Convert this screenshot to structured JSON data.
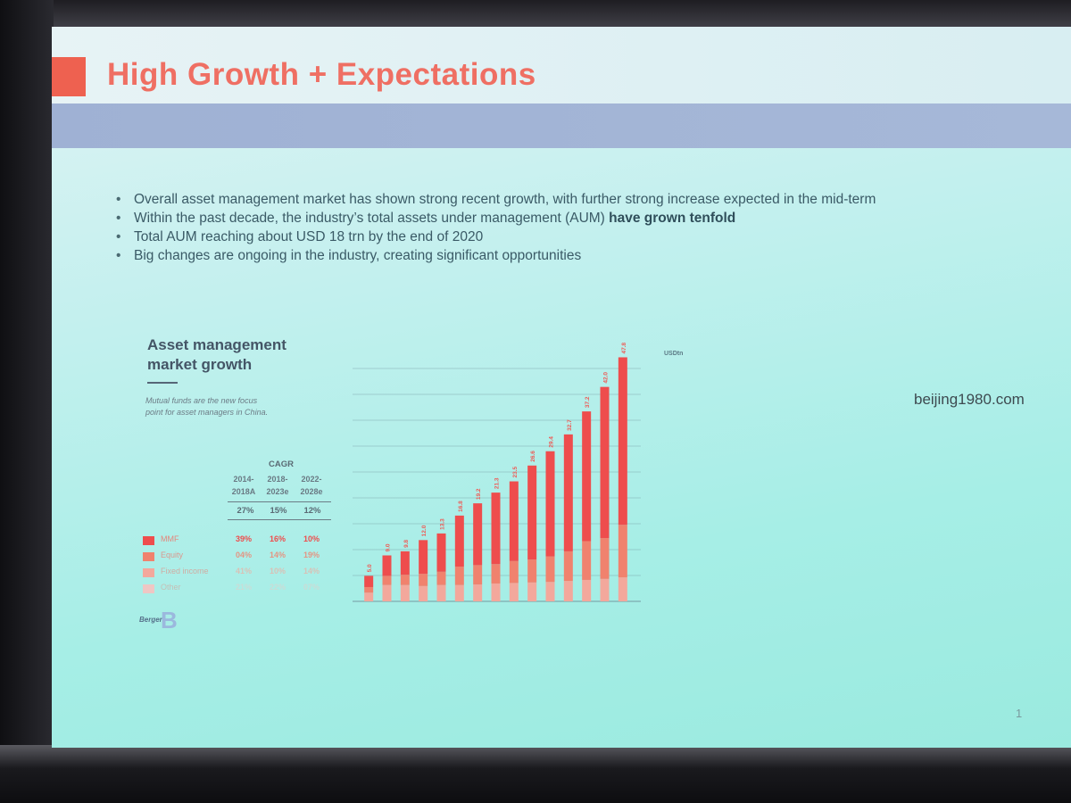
{
  "slide": {
    "title": "High Growth + Expectations",
    "bullets": [
      {
        "text": "Overall asset management market has shown strong recent growth, with further strong increase expected in the mid-term",
        "bold": ""
      },
      {
        "text": "Within the past decade, the industry’s total assets under management (AUM) ",
        "bold": "have grown tenfold"
      },
      {
        "text": "Total AUM reaching about USD 18 trn by the end of 2020",
        "bold": ""
      },
      {
        "text": "Big changes are ongoing in the industry, creating significant opportunities",
        "bold": ""
      }
    ],
    "page_number": "1",
    "watermark": "beijing1980.com"
  },
  "chart_panel": {
    "title_line1": "Asset management",
    "title_line2": "market growth",
    "note": "Mutual funds are the new focus point for asset managers in China.",
    "cagr": {
      "header": "CAGR",
      "periods": [
        {
          "line1": "2014-",
          "line2": "2018A"
        },
        {
          "line1": "2018-",
          "line2": "2023e"
        },
        {
          "line1": "2022-",
          "line2": "2028e"
        }
      ],
      "totals": [
        "27%",
        "15%",
        "12%"
      ]
    },
    "legend": [
      {
        "label": "MMF",
        "values": [
          "39%",
          "16%",
          "10%"
        ],
        "color": "#ee4d4d"
      },
      {
        "label": "Equity",
        "values": [
          "04%",
          "14%",
          "19%"
        ],
        "color": "#f0826e"
      },
      {
        "label": "Fixed income",
        "values": [
          "41%",
          "10%",
          "14%"
        ],
        "color": "#f3a89c"
      },
      {
        "label": "Other",
        "values": [
          "21%",
          "22%",
          "07%"
        ],
        "color": "#efc7c4"
      }
    ],
    "logo_text": "Berger"
  },
  "chart_data": {
    "type": "bar",
    "unit_label": "USDtn",
    "values": [
      5.0,
      9.0,
      9.8,
      12.0,
      13.3,
      16.8,
      19.2,
      21.3,
      23.5,
      26.6,
      29.4,
      32.7,
      37.2,
      42.0,
      47.8
    ],
    "segments": {
      "base": [
        1.7,
        3.2,
        3.2,
        3.0,
        3.2,
        3.2,
        3.3,
        3.5,
        3.6,
        3.7,
        3.8,
        4.0,
        4.2,
        4.4,
        4.7
      ],
      "middle": [
        1.1,
        1.8,
        2.0,
        2.4,
        2.6,
        3.6,
        3.8,
        3.8,
        4.3,
        4.5,
        5.0,
        5.8,
        7.6,
        8.0,
        10.3
      ],
      "top": [
        2.2,
        4.0,
        4.6,
        6.6,
        7.5,
        10.0,
        12.1,
        14.0,
        15.6,
        18.4,
        20.6,
        22.9,
        25.4,
        29.6,
        32.8
      ]
    },
    "segment_colors": {
      "base": "#f3a89c",
      "middle": "#f0826e",
      "top": "#ee4d4d"
    },
    "ylim": [
      0,
      50
    ],
    "grid": true,
    "legend_position": "left"
  }
}
